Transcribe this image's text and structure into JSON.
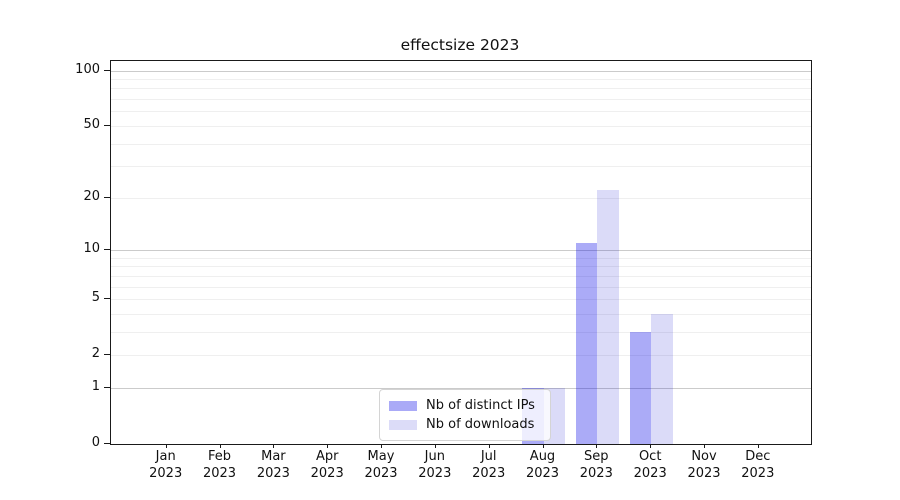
{
  "title": "effectsize 2023",
  "legend": {
    "items": [
      "Nb of distinct IPs",
      "Nb of downloads"
    ]
  },
  "chart_data": {
    "type": "bar",
    "title": "effectsize 2023",
    "categories": [
      "Jan 2023",
      "Feb 2023",
      "Mar 2023",
      "Apr 2023",
      "May 2023",
      "Jun 2023",
      "Jul 2023",
      "Aug 2023",
      "Sep 2023",
      "Oct 2023",
      "Nov 2023",
      "Dec 2023"
    ],
    "series": [
      {
        "name": "Nb of distinct IPs",
        "color": "#aaaaf7",
        "fill": "rgba(0,0,230,0.33)",
        "values": [
          0,
          0,
          0,
          0,
          0,
          0,
          0,
          1,
          11,
          3,
          0,
          0
        ]
      },
      {
        "name": "Nb of downloads",
        "color": "#dcdcf8",
        "fill": "rgba(0,0,205,0.14)",
        "values": [
          0,
          0,
          0,
          0,
          0,
          0,
          0,
          1,
          22,
          4,
          0,
          0
        ]
      }
    ],
    "xlabel": "",
    "ylabel": "",
    "yscale": "log1p",
    "ylim": [
      0,
      113
    ],
    "y_tick_values": [
      0,
      1,
      2,
      5,
      10,
      20,
      50,
      100
    ],
    "y_tick_labels": [
      "0",
      "1",
      "2",
      "5",
      "10",
      "20",
      "50",
      "100"
    ],
    "grid_major_values": [
      1,
      10,
      100
    ],
    "grid_minor_values": [
      2,
      3,
      4,
      5,
      6,
      7,
      8,
      9,
      20,
      30,
      40,
      50,
      60,
      70,
      80,
      90
    ],
    "grid": "on",
    "legend_position": "lower center",
    "colors": {
      "spine": "#1a1a1a",
      "grid_major": "#cbcbcb",
      "grid_minor": "#efefef",
      "legend_border": "#d4d4d4"
    }
  }
}
